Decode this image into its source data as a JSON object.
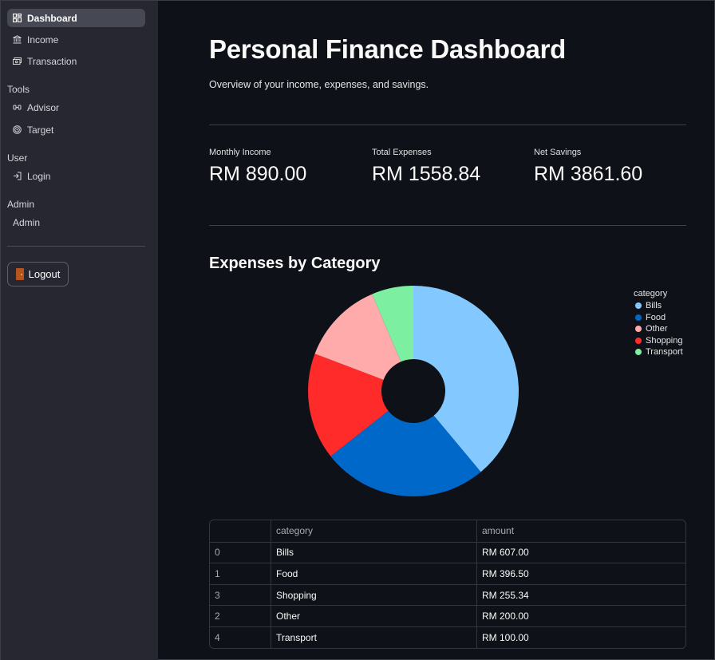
{
  "sidebar": {
    "nav": [
      {
        "label": "Dashboard",
        "icon": "dashboard-icon",
        "active": true
      },
      {
        "label": "Income",
        "icon": "bank-icon"
      },
      {
        "label": "Transaction",
        "icon": "cash-icon"
      }
    ],
    "tools_label": "Tools",
    "tools": [
      {
        "label": "Advisor",
        "icon": "advisor-icon"
      },
      {
        "label": "Target",
        "icon": "target-icon"
      }
    ],
    "user_label": "User",
    "user": [
      {
        "label": "Login",
        "icon": "login-icon"
      }
    ],
    "admin_label": "Admin",
    "admin": [
      {
        "label": "Admin"
      }
    ],
    "logout_label": "Logout"
  },
  "main": {
    "title": "Personal Finance Dashboard",
    "subtitle": "Overview of your income, expenses, and savings.",
    "metrics": [
      {
        "label": "Monthly Income",
        "value": "RM 890.00"
      },
      {
        "label": "Total Expenses",
        "value": "RM 1558.84"
      },
      {
        "label": "Net Savings",
        "value": "RM 3861.60"
      }
    ],
    "chart_title": "Expenses by Category"
  },
  "chart_data": {
    "type": "pie",
    "legend_title": "category",
    "legend_placement": "top-right",
    "slices": [
      {
        "label": "Bills",
        "value": 607.0,
        "color": "#83c9ff"
      },
      {
        "label": "Food",
        "value": 396.5,
        "color": "#0068c9"
      },
      {
        "label": "Other",
        "value": 200.0,
        "color": "#ffabab"
      },
      {
        "label": "Shopping",
        "value": 255.34,
        "color": "#ff2b2b"
      },
      {
        "label": "Transport",
        "value": 100.0,
        "color": "#7defa1"
      }
    ]
  },
  "table": {
    "headers": [
      "",
      "category",
      "amount"
    ],
    "rows": [
      [
        "0",
        "Bills",
        "RM 607.00"
      ],
      [
        "1",
        "Food",
        "RM 396.50"
      ],
      [
        "3",
        "Shopping",
        "RM 255.34"
      ],
      [
        "2",
        "Other",
        "RM 200.00"
      ],
      [
        "4",
        "Transport",
        "RM 100.00"
      ]
    ]
  }
}
